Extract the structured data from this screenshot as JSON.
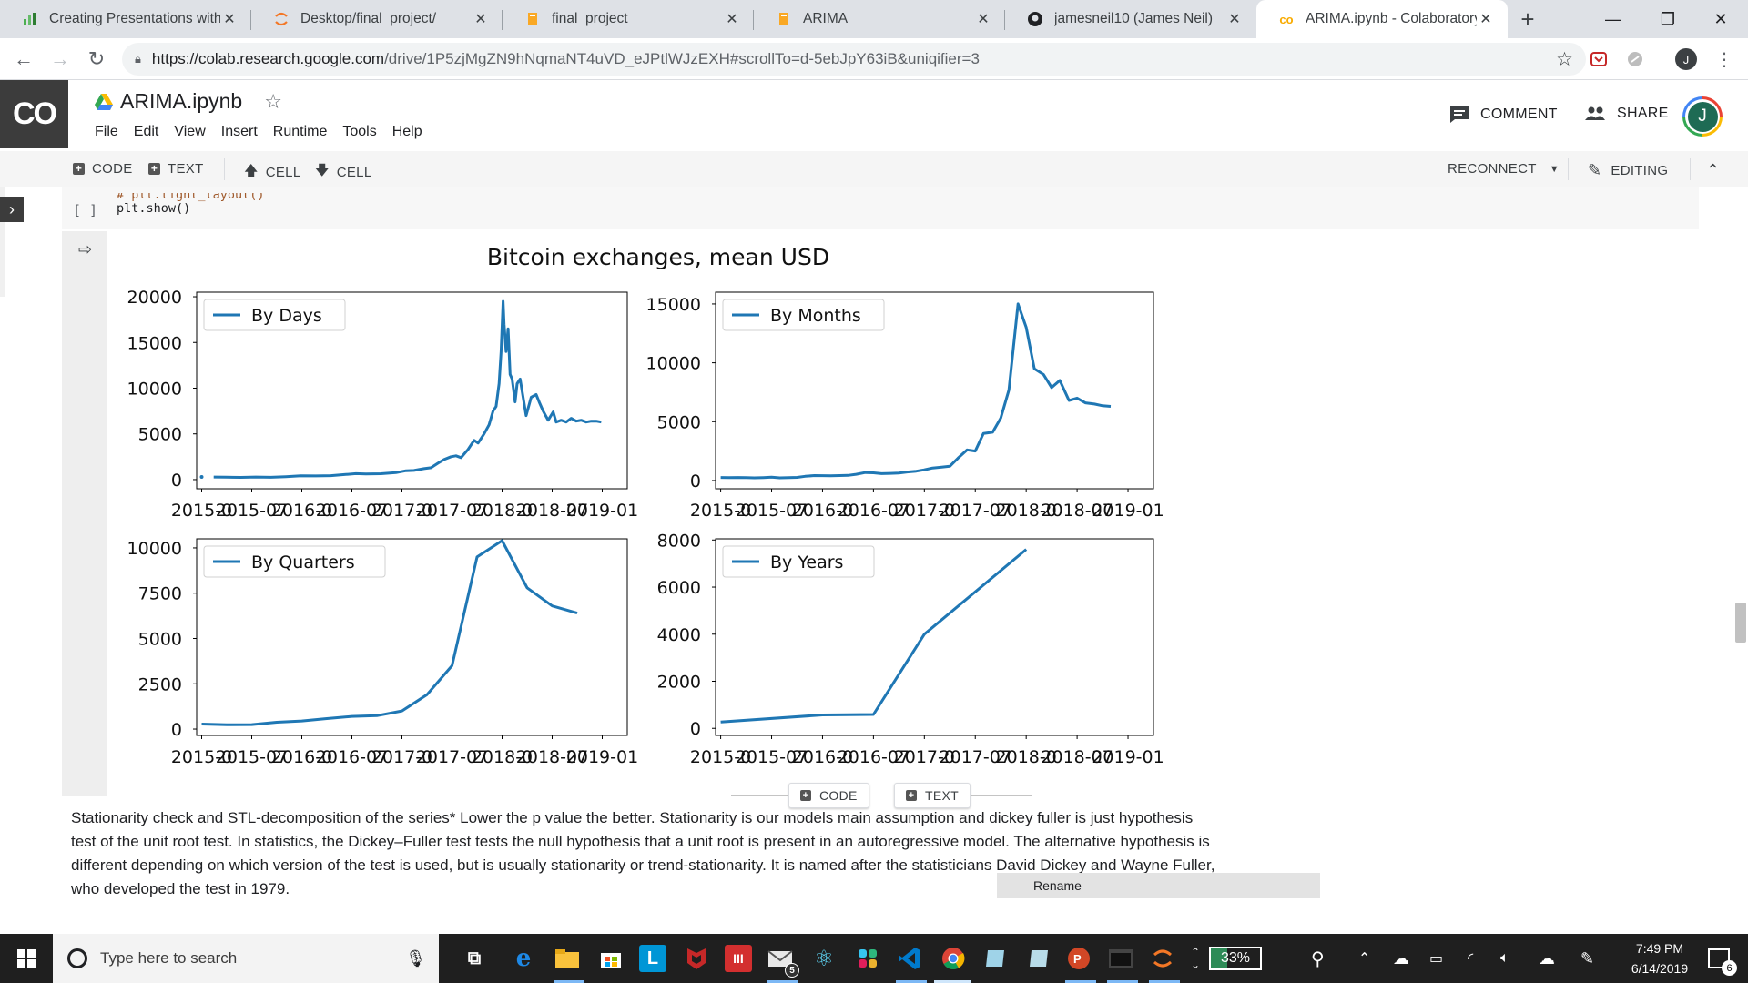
{
  "browser": {
    "tabs": [
      {
        "title": "Creating Presentations with Ju",
        "icon": "green-chart-icon",
        "color": "#4caf50"
      },
      {
        "title": "Desktop/final_project/",
        "icon": "jupyter-icon",
        "color": "#f37726"
      },
      {
        "title": "final_project",
        "icon": "book-icon",
        "color": "#f9a825"
      },
      {
        "title": "ARIMA",
        "icon": "book-icon",
        "color": "#f9a825"
      },
      {
        "title": "jamesneil10 (James Neil)",
        "icon": "github-icon",
        "color": "#202124"
      },
      {
        "title": "ARIMA.ipynb - Colaboratory",
        "icon": "colab-icon",
        "color": "#f9ab00"
      }
    ],
    "new_tab": "+",
    "window": {
      "minimize": "—",
      "maximize": "❐",
      "close": "✕"
    },
    "url_host": "https://colab.research.google.com",
    "url_path": "/drive/1P5zjMgZN9hNqmaNT4uVD_eJPtlWJzEXH#scrollTo=d-5ebJpY63iB&uniqifier=3",
    "profile_initial": "J"
  },
  "colab": {
    "logo": "CO",
    "title": "ARIMA.ipynb",
    "menu": [
      "File",
      "Edit",
      "View",
      "Insert",
      "Runtime",
      "Tools",
      "Help"
    ],
    "comment_label": "COMMENT",
    "share_label": "SHARE",
    "avatar_initial": "J",
    "toolbar": {
      "code": "CODE",
      "text": "TEXT",
      "cell_up": "CELL",
      "cell_down": "CELL",
      "reconnect": "RECONNECT",
      "editing": "EDITING"
    }
  },
  "cell": {
    "run_indicator": "[ ]",
    "code_lines": [
      "# plt.tight_layout()",
      "plt.show()"
    ]
  },
  "chart_data": {
    "type": "line",
    "title": "Bitcoin exchanges, mean USD",
    "color": "#1f77b4",
    "x_ticks": [
      "2015-01",
      "2015-07",
      "2016-01",
      "2016-07",
      "2017-01",
      "2017-07",
      "2018-01",
      "2018-07",
      "2019-01"
    ],
    "x_tick_labels_rendered": [
      "2015-0",
      "2015-07",
      "2016-0",
      "2016-07",
      "2017-0",
      "2017-07",
      "2018-0",
      "2018-07",
      "2019-01"
    ],
    "x_range": [
      2014.95,
      2019.25
    ],
    "panels": [
      {
        "legend": "By Days",
        "legend_location": "upper left",
        "y_ticks": [
          0,
          5000,
          10000,
          15000,
          20000
        ],
        "ylim": [
          -1000,
          20500
        ],
        "points": [
          [
            2015.0,
            300
          ],
          [
            2015.08,
            280
          ],
          [
            2015.2,
            260
          ],
          [
            2015.35,
            240
          ],
          [
            2015.5,
            280
          ],
          [
            2015.65,
            250
          ],
          [
            2015.8,
            320
          ],
          [
            2015.95,
            420
          ],
          [
            2016.1,
            400
          ],
          [
            2016.25,
            430
          ],
          [
            2016.4,
            560
          ],
          [
            2016.5,
            650
          ],
          [
            2016.6,
            620
          ],
          [
            2016.75,
            640
          ],
          [
            2016.9,
            760
          ],
          [
            2017.0,
            970
          ],
          [
            2017.08,
            1000
          ],
          [
            2017.18,
            1200
          ],
          [
            2017.25,
            1300
          ],
          [
            2017.32,
            1800
          ],
          [
            2017.38,
            2200
          ],
          [
            2017.45,
            2500
          ],
          [
            2017.5,
            2600
          ],
          [
            2017.55,
            2400
          ],
          [
            2017.62,
            3300
          ],
          [
            2017.68,
            4300
          ],
          [
            2017.72,
            4000
          ],
          [
            2017.78,
            5000
          ],
          [
            2017.83,
            6000
          ],
          [
            2017.87,
            7500
          ],
          [
            2017.9,
            8000
          ],
          [
            2017.93,
            10500
          ],
          [
            2017.95,
            14000
          ],
          [
            2017.97,
            19500
          ],
          [
            2017.98,
            17000
          ],
          [
            2018.0,
            14000
          ],
          [
            2018.02,
            16500
          ],
          [
            2018.04,
            11500
          ],
          [
            2018.06,
            11000
          ],
          [
            2018.09,
            8500
          ],
          [
            2018.11,
            10500
          ],
          [
            2018.14,
            11000
          ],
          [
            2018.17,
            9000
          ],
          [
            2018.2,
            7000
          ],
          [
            2018.25,
            9000
          ],
          [
            2018.3,
            9300
          ],
          [
            2018.33,
            8500
          ],
          [
            2018.37,
            7500
          ],
          [
            2018.42,
            6500
          ],
          [
            2018.47,
            7400
          ],
          [
            2018.5,
            6300
          ],
          [
            2018.55,
            6500
          ],
          [
            2018.6,
            6300
          ],
          [
            2018.65,
            6700
          ],
          [
            2018.7,
            6400
          ],
          [
            2018.75,
            6500
          ],
          [
            2018.8,
            6300
          ],
          [
            2018.85,
            6400
          ],
          [
            2018.9,
            6400
          ],
          [
            2018.95,
            6300
          ]
        ]
      },
      {
        "legend": "By Months",
        "legend_location": "upper left",
        "y_ticks": [
          0,
          5000,
          10000,
          15000
        ],
        "ylim": [
          -700,
          16000
        ],
        "points": [
          [
            2015.0,
            260
          ],
          [
            2015.08,
            250
          ],
          [
            2015.17,
            260
          ],
          [
            2015.25,
            240
          ],
          [
            2015.33,
            230
          ],
          [
            2015.42,
            250
          ],
          [
            2015.5,
            280
          ],
          [
            2015.58,
            230
          ],
          [
            2015.67,
            240
          ],
          [
            2015.75,
            270
          ],
          [
            2015.83,
            360
          ],
          [
            2015.92,
            420
          ],
          [
            2016.0,
            410
          ],
          [
            2016.08,
            400
          ],
          [
            2016.17,
            420
          ],
          [
            2016.25,
            440
          ],
          [
            2016.33,
            530
          ],
          [
            2016.42,
            680
          ],
          [
            2016.5,
            650
          ],
          [
            2016.58,
            580
          ],
          [
            2016.67,
            610
          ],
          [
            2016.75,
            640
          ],
          [
            2016.83,
            720
          ],
          [
            2016.92,
            790
          ],
          [
            2017.0,
            910
          ],
          [
            2017.08,
            1060
          ],
          [
            2017.17,
            1130
          ],
          [
            2017.25,
            1210
          ],
          [
            2017.33,
            1900
          ],
          [
            2017.42,
            2600
          ],
          [
            2017.5,
            2500
          ],
          [
            2017.58,
            4000
          ],
          [
            2017.67,
            4100
          ],
          [
            2017.75,
            5300
          ],
          [
            2017.83,
            7700
          ],
          [
            2017.92,
            15000
          ],
          [
            2018.0,
            13000
          ],
          [
            2018.08,
            9500
          ],
          [
            2018.17,
            9000
          ],
          [
            2018.25,
            7900
          ],
          [
            2018.33,
            8500
          ],
          [
            2018.42,
            6800
          ],
          [
            2018.5,
            7000
          ],
          [
            2018.58,
            6600
          ],
          [
            2018.67,
            6500
          ],
          [
            2018.75,
            6350
          ],
          [
            2018.83,
            6300
          ]
        ]
      },
      {
        "legend": "By Quarters",
        "legend_location": "upper left",
        "y_ticks": [
          0,
          2500,
          5000,
          7500,
          10000
        ],
        "ylim": [
          -350,
          10500
        ],
        "points": [
          [
            2015.0,
            280
          ],
          [
            2015.25,
            240
          ],
          [
            2015.5,
            250
          ],
          [
            2015.75,
            380
          ],
          [
            2016.0,
            450
          ],
          [
            2016.25,
            580
          ],
          [
            2016.5,
            700
          ],
          [
            2016.75,
            740
          ],
          [
            2017.0,
            1000
          ],
          [
            2017.25,
            1900
          ],
          [
            2017.5,
            3500
          ],
          [
            2017.75,
            9500
          ],
          [
            2018.0,
            10400
          ],
          [
            2018.25,
            7800
          ],
          [
            2018.5,
            6800
          ],
          [
            2018.75,
            6400
          ]
        ]
      },
      {
        "legend": "By Years",
        "legend_location": "upper left",
        "y_ticks": [
          0,
          2000,
          4000,
          6000,
          8000
        ],
        "ylim": [
          -300,
          8050
        ],
        "points": [
          [
            2015.0,
            270
          ],
          [
            2016.0,
            570
          ],
          [
            2016.5,
            590
          ],
          [
            2017.0,
            4000
          ],
          [
            2018.0,
            7600
          ]
        ]
      }
    ]
  },
  "add_cell": {
    "code": "CODE",
    "text": "TEXT"
  },
  "markdown": "Stationarity check and STL-decomposition of the series* Lower the p value the better. Stationarity is our models main assumption and dickey fuller is just hypothesis test of the unit root test. In statistics, the Dickey–Fuller test tests the null hypothesis that a unit root is present in an autoregressive model. The alternative hypothesis is different depending on which version of the test is used, but is usually stationarity or trend-stationarity. It is named after the statisticians David Dickey and Wayne Fuller, who developed the test in 1979.",
  "tooltip": "Rename",
  "taskbar": {
    "search_placeholder": "Type here to search",
    "battery": "33%",
    "time": "7:49 PM",
    "date": "6/14/2019",
    "notifications": "6",
    "mail_badge": "5"
  }
}
